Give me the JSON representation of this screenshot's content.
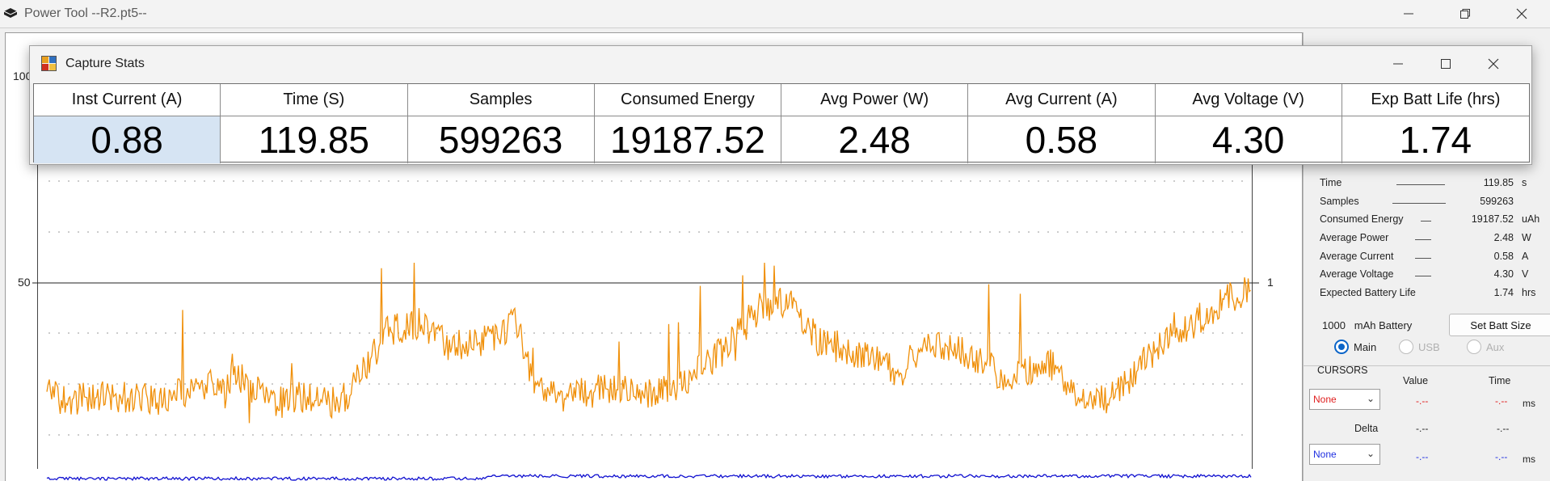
{
  "window": {
    "title": "Power Tool --R2.pt5--"
  },
  "plot": {
    "y_tick_100": "100",
    "y_tick_50": "50",
    "right_tick": "1",
    "trace_colors": {
      "current": "#f0900a",
      "voltage": "#1010d0"
    }
  },
  "dialog": {
    "title": "Capture Stats",
    "columns": [
      {
        "header": "Inst Current (A)",
        "value": "0.88"
      },
      {
        "header": "Time (S)",
        "value": "119.85"
      },
      {
        "header": "Samples",
        "value": "599263"
      },
      {
        "header": "Consumed Energy",
        "value": "19187.52"
      },
      {
        "header": "Avg Power (W)",
        "value": "2.48"
      },
      {
        "header": "Avg Current (A)",
        "value": "0.58"
      },
      {
        "header": "Avg Voltage (V)",
        "value": "4.30"
      },
      {
        "header": "Exp Batt Life (hrs)",
        "value": "1.74"
      }
    ]
  },
  "panel": {
    "stats": [
      {
        "label": "Time",
        "value": "119.85",
        "unit": "s"
      },
      {
        "label": "Samples",
        "value": "599263",
        "unit": ""
      },
      {
        "label": "Consumed Energy",
        "value": "19187.52",
        "unit": "uAh"
      },
      {
        "label": "Average Power",
        "value": "2.48",
        "unit": "W"
      },
      {
        "label": "Average Current",
        "value": "0.58",
        "unit": "A"
      },
      {
        "label": "Average Voltage",
        "value": "4.30",
        "unit": "V"
      },
      {
        "label": "Expected Battery Life",
        "value": "1.74",
        "unit": "hrs"
      }
    ],
    "battery_capacity": "1000",
    "battery_unit": "mAh Battery",
    "set_batt_label": "Set Batt Size",
    "channels": [
      {
        "label": "Main",
        "selected": true
      },
      {
        "label": "USB",
        "selected": false
      },
      {
        "label": "Aux",
        "selected": false
      }
    ]
  },
  "cursors": {
    "title": "CURSORS",
    "value_header": "Value",
    "time_header": "Time",
    "delta_label": "Delta",
    "cursor1": {
      "select": "None",
      "value": "-.--",
      "time": "-.--",
      "unit": "ms",
      "color": "#e02020"
    },
    "delta": {
      "value": "-.--",
      "time": "-.--"
    },
    "cursor2": {
      "select": "None",
      "value": "-.--",
      "time": "-.--",
      "unit": "ms",
      "color": "#2030e0"
    }
  }
}
